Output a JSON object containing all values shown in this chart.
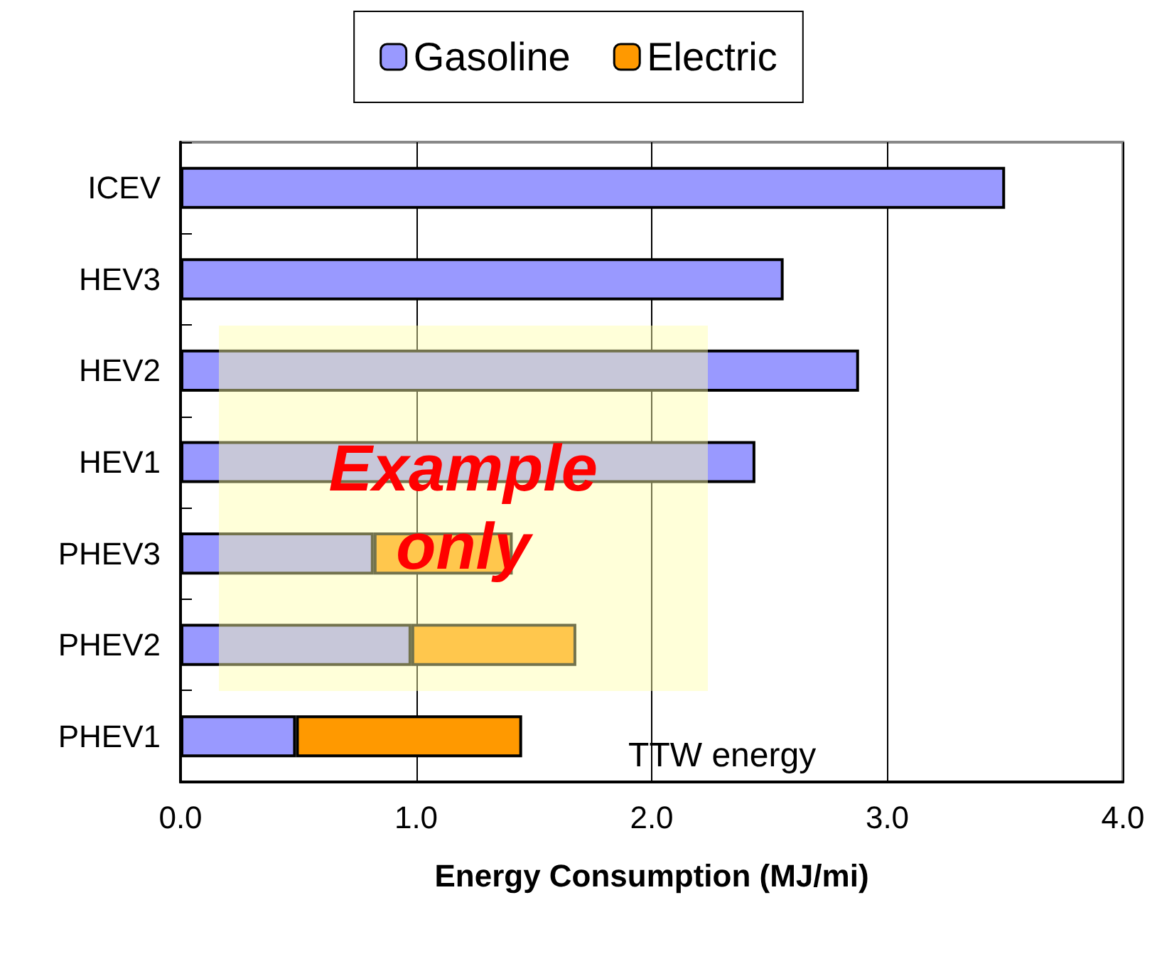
{
  "chart_data": {
    "type": "bar",
    "orientation": "horizontal",
    "stacked": true,
    "categories": [
      "ICEV",
      "HEV3",
      "HEV2",
      "HEV1",
      "PHEV3",
      "PHEV2",
      "PHEV1"
    ],
    "series": [
      {
        "name": "Gasoline",
        "color": "#9999ff",
        "values": [
          3.5,
          2.56,
          2.88,
          2.44,
          0.82,
          0.98,
          0.49
        ]
      },
      {
        "name": "Electric",
        "color": "#ff9900",
        "values": [
          null,
          null,
          null,
          null,
          0.59,
          0.7,
          0.96
        ]
      }
    ],
    "xlim": [
      0,
      4
    ],
    "xticks": [
      {
        "value": 0,
        "label": "0.0"
      },
      {
        "value": 1,
        "label": "1.0"
      },
      {
        "value": 2,
        "label": "2.0"
      },
      {
        "value": 3,
        "label": "3.0"
      },
      {
        "value": 4,
        "label": "4.0"
      }
    ],
    "xlabel": "Energy Consumption (MJ/mi)",
    "annotations": [
      "Example only",
      "TTW energy"
    ],
    "grid": "x",
    "legend": "top"
  }
}
